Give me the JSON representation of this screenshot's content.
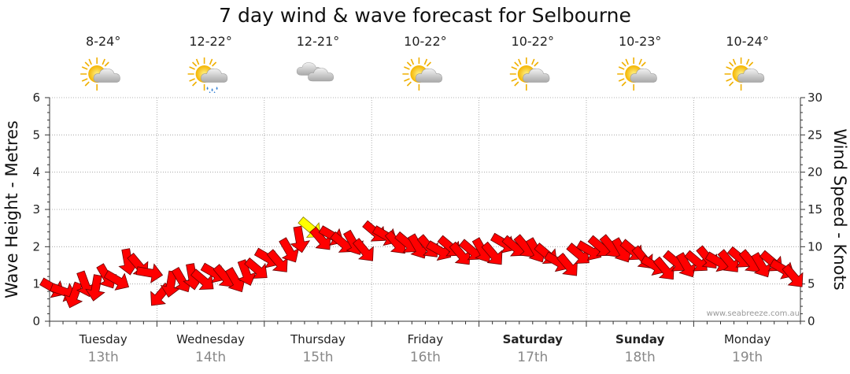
{
  "title": "7 day wind & wave forecast for Selbourne",
  "credit": "www.seabreeze.com.au",
  "days": [
    {
      "name": "Tuesday",
      "date": "13th",
      "temp": "8-24°",
      "icon": "partly-cloudy-sun-icon",
      "bold": false
    },
    {
      "name": "Wednesday",
      "date": "14th",
      "temp": "12-22°",
      "icon": "sun-cloud-rain-icon",
      "bold": false
    },
    {
      "name": "Thursday",
      "date": "15th",
      "temp": "12-21°",
      "icon": "cloudy-icon",
      "bold": false
    },
    {
      "name": "Friday",
      "date": "16th",
      "temp": "10-22°",
      "icon": "partly-cloudy-sun-icon",
      "bold": false
    },
    {
      "name": "Saturday",
      "date": "17th",
      "temp": "10-22°",
      "icon": "partly-cloudy-sun-icon",
      "bold": true
    },
    {
      "name": "Sunday",
      "date": "18th",
      "temp": "10-23°",
      "icon": "partly-cloudy-sun-icon",
      "bold": true
    },
    {
      "name": "Monday",
      "date": "19th",
      "temp": "10-24°",
      "icon": "partly-cloudy-sun-icon",
      "bold": false
    }
  ],
  "chart_data": {
    "type": "line",
    "title": "7 day wind & wave forecast for Selbourne",
    "ylabel_left": "Wave Height - Metres",
    "ylabel_right": "Wind Speed - Knots",
    "yticks_left": [
      "0",
      "1",
      "2",
      "3",
      "4",
      "5",
      "6"
    ],
    "yticks_right": [
      "0",
      "5",
      "10",
      "15",
      "20",
      "25",
      "30"
    ],
    "ylim_left": [
      0,
      6
    ],
    "ylim_right": [
      0,
      30
    ],
    "grid": true,
    "arrow_color": "#ff0000",
    "highlight_color": "#ffff00",
    "series": [
      {
        "name": "Wind Speed",
        "unit": "knots",
        "x_days": [
          0.0,
          0.1,
          0.2,
          0.3,
          0.4,
          0.5,
          0.6,
          0.7,
          0.8,
          0.9,
          1.0,
          1.1,
          1.2,
          1.3,
          1.4,
          1.5,
          1.6,
          1.7,
          1.8,
          1.9,
          2.0,
          2.1,
          2.2,
          2.3,
          2.4,
          2.5,
          2.6,
          2.7,
          2.8,
          2.9,
          3.0,
          3.1,
          3.2,
          3.3,
          3.4,
          3.5,
          3.6,
          3.7,
          3.8,
          3.9,
          4.0,
          4.1,
          4.2,
          4.3,
          4.4,
          4.5,
          4.6,
          4.7,
          4.8,
          4.9,
          5.0,
          5.1,
          5.2,
          5.3,
          5.4,
          5.5,
          5.6,
          5.7,
          5.8,
          5.9,
          6.0,
          6.1,
          6.2,
          6.3,
          6.4,
          6.5,
          6.6,
          6.7,
          6.8,
          6.9
        ],
        "values": [
          4.5,
          4.0,
          3.5,
          5.0,
          4.5,
          6.0,
          5.5,
          8.0,
          7.5,
          6.5,
          3.5,
          5.0,
          5.5,
          6.0,
          5.5,
          6.5,
          6.0,
          5.5,
          6.5,
          7.0,
          8.5,
          8.0,
          9.5,
          11.0,
          12.5,
          11.0,
          11.5,
          10.5,
          10.5,
          9.5,
          12.0,
          11.5,
          10.5,
          10.5,
          10.0,
          10.0,
          9.5,
          10.0,
          9.0,
          9.5,
          9.5,
          9.0,
          10.5,
          10.0,
          10.0,
          9.5,
          9.0,
          8.0,
          7.5,
          9.0,
          9.5,
          10.0,
          10.0,
          9.5,
          9.5,
          8.5,
          7.5,
          7.0,
          8.0,
          7.5,
          8.0,
          8.5,
          8.0,
          8.0,
          8.5,
          8.0,
          7.5,
          8.0,
          7.0,
          6.0
        ]
      },
      {
        "name": "Wind Direction",
        "unit": "degrees",
        "x_days": [
          0.0,
          0.1,
          0.2,
          0.3,
          0.4,
          0.5,
          0.6,
          0.7,
          0.8,
          0.9,
          1.0,
          1.1,
          1.2,
          1.3,
          1.4,
          1.5,
          1.6,
          1.7,
          1.8,
          1.9,
          2.0,
          2.1,
          2.2,
          2.3,
          2.4,
          2.5,
          2.6,
          2.7,
          2.8,
          2.9,
          3.0,
          3.1,
          3.2,
          3.3,
          3.4,
          3.5,
          3.6,
          3.7,
          3.8,
          3.9,
          4.0,
          4.1,
          4.2,
          4.3,
          4.4,
          4.5,
          4.6,
          4.7,
          4.8,
          4.9,
          5.0,
          5.1,
          5.2,
          5.3,
          5.4,
          5.5,
          5.6,
          5.7,
          5.8,
          5.9,
          6.0,
          6.1,
          6.2,
          6.3,
          6.4,
          6.5,
          6.6,
          6.7,
          6.8,
          6.9
        ],
        "values": [
          300,
          290,
          20,
          340,
          10,
          330,
          300,
          350,
          320,
          280,
          40,
          10,
          330,
          350,
          310,
          300,
          320,
          330,
          340,
          310,
          300,
          320,
          330,
          350,
          310,
          320,
          300,
          310,
          330,
          320,
          310,
          300,
          320,
          310,
          330,
          320,
          300,
          310,
          320,
          310,
          330,
          320,
          300,
          310,
          320,
          330,
          310,
          300,
          320,
          310,
          300,
          310,
          320,
          330,
          310,
          320,
          300,
          320,
          310,
          330,
          310,
          320,
          300,
          320,
          310,
          320,
          330,
          310,
          300,
          320
        ]
      }
    ],
    "highlight_index": 24
  }
}
